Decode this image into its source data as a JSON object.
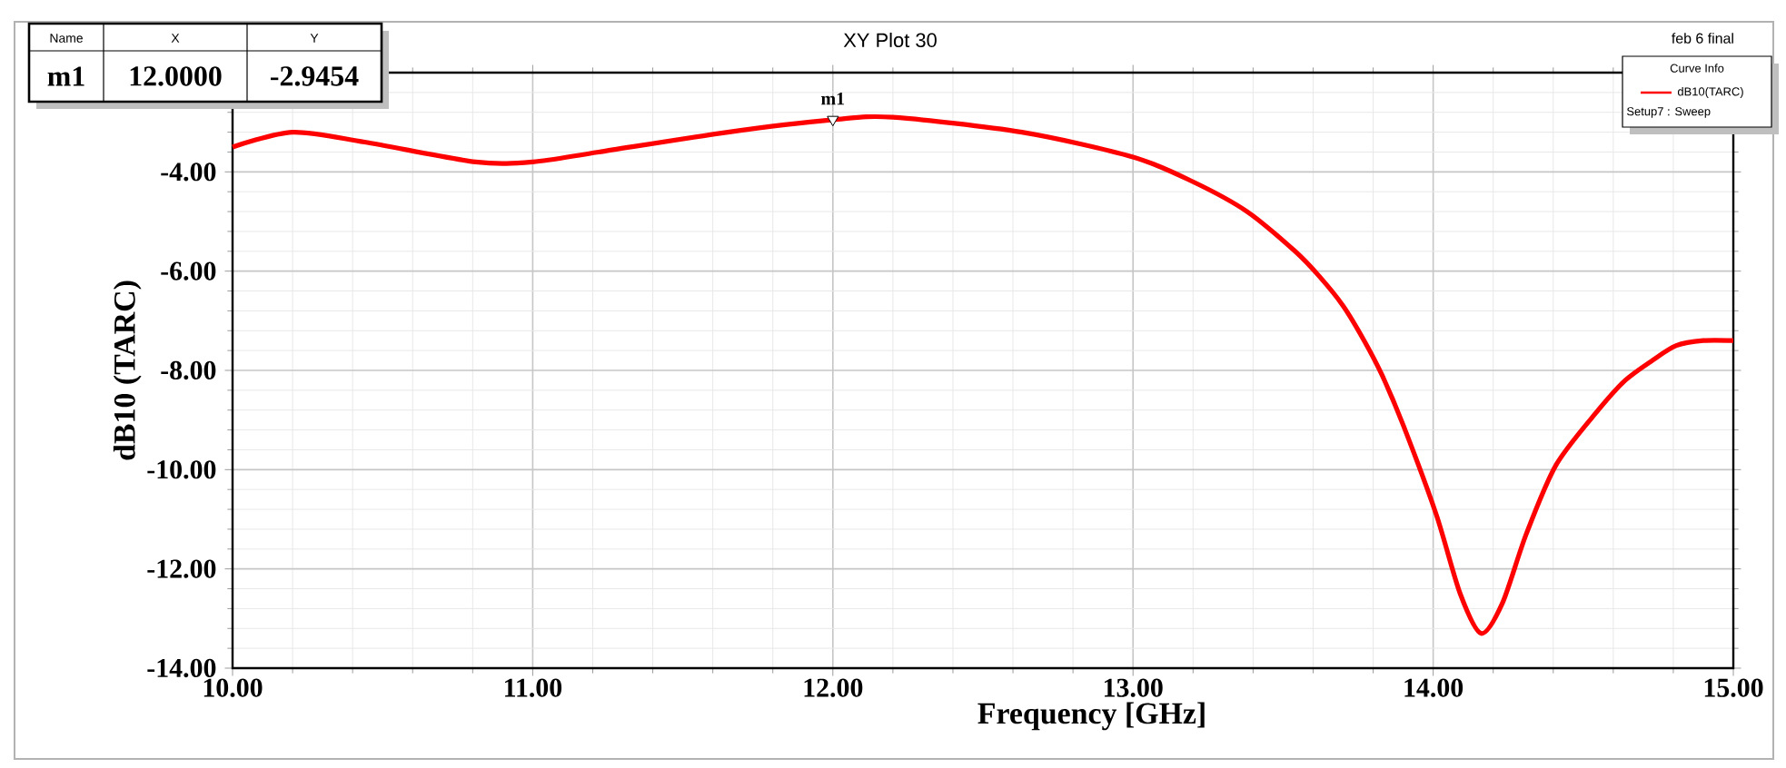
{
  "chart_data": {
    "type": "line",
    "title": "XY Plot 30",
    "subtitle": "feb 6 final",
    "xlabel": "Frequency [GHz]",
    "ylabel": "dB10 (TARC)",
    "legend_title": "Curve Info",
    "xlim": [
      10,
      15
    ],
    "ylim": [
      -14,
      -2
    ],
    "xticks": [
      {
        "value": 10,
        "label": "10.00"
      },
      {
        "value": 11,
        "label": "11.00"
      },
      {
        "value": 12,
        "label": "12.00"
      },
      {
        "value": 13,
        "label": "13.00"
      },
      {
        "value": 14,
        "label": "14.00"
      },
      {
        "value": 15,
        "label": "15.00"
      }
    ],
    "yticks": [
      {
        "value": -14,
        "label": "-14.00"
      },
      {
        "value": -12,
        "label": "-12.00"
      },
      {
        "value": -10,
        "label": "-10.00"
      },
      {
        "value": -8,
        "label": "-8.00"
      },
      {
        "value": -6,
        "label": "-6.00"
      },
      {
        "value": -4,
        "label": "-4.00"
      },
      {
        "value": -2,
        "label": null
      }
    ],
    "grid": true,
    "legend": "top right",
    "series": [
      {
        "name": "dB10(TARC)",
        "color": "#ff0000",
        "x": [
          10,
          10.2,
          10.44,
          10.81,
          11.0,
          11.22,
          11.65,
          12.0,
          12.2,
          12.63,
          13.0,
          13.2,
          13.38,
          13.54,
          13.62,
          13.7,
          13.77,
          13.83,
          13.9,
          14.01,
          14.09,
          14.16,
          14.23,
          14.31,
          14.41,
          14.55,
          14.64,
          14.73,
          14.81,
          14.9,
          15.0
        ],
        "values": [
          -3.5,
          -3.2,
          -3.4,
          -3.8,
          -3.8,
          -3.6,
          -3.2,
          -2.95,
          -2.9,
          -3.2,
          -3.7,
          -4.2,
          -4.8,
          -5.6,
          -6.1,
          -6.7,
          -7.4,
          -8.1,
          -9.1,
          -10.9,
          -12.5,
          -13.3,
          -12.7,
          -11.3,
          -9.9,
          -8.8,
          -8.2,
          -7.8,
          -7.5,
          -7.4,
          -7.4
        ]
      }
    ],
    "annotations": [
      "Setup7 : Sweep",
      "Name",
      "X",
      "Y",
      "m1",
      "12.0000",
      "-2.9454",
      {
        "text": "m1",
        "x": 12,
        "y": -2.9454
      }
    ]
  }
}
